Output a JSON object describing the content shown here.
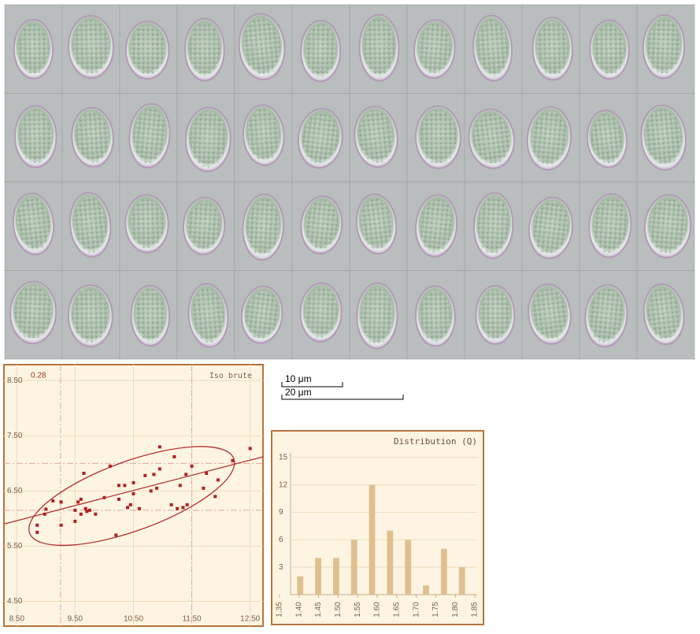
{
  "chart_data": [
    {
      "type": "scatter",
      "annotations": [
        "0.28",
        "Iso brute"
      ],
      "x": [
        8.85,
        8.85,
        8.98,
        9.0,
        9.12,
        9.26,
        9.26,
        9.5,
        9.5,
        9.55,
        9.6,
        9.6,
        9.65,
        9.68,
        9.7,
        9.75,
        9.85,
        10.0,
        10.1,
        10.2,
        10.25,
        10.25,
        10.35,
        10.4,
        10.45,
        10.5,
        10.5,
        10.6,
        10.7,
        10.8,
        10.85,
        10.9,
        10.95,
        10.95,
        11.15,
        11.2,
        11.25,
        11.3,
        11.35,
        11.4,
        11.42,
        11.5,
        11.7,
        11.75,
        11.9,
        11.95,
        12.2,
        12.5
      ],
      "values": [
        5.75,
        5.88,
        6.08,
        6.17,
        6.32,
        5.88,
        6.3,
        5.95,
        6.15,
        6.3,
        6.35,
        6.08,
        6.82,
        6.18,
        6.13,
        6.15,
        6.08,
        6.38,
        6.95,
        5.7,
        6.35,
        6.6,
        6.6,
        6.2,
        6.25,
        6.45,
        6.65,
        6.18,
        6.78,
        6.5,
        6.8,
        6.55,
        7.3,
        6.9,
        6.25,
        7.12,
        6.18,
        6.6,
        6.2,
        6.8,
        6.25,
        6.95,
        6.55,
        6.82,
        6.4,
        6.7,
        7.05,
        7.27
      ],
      "color": "#b02020",
      "xlim": [
        8.28,
        12.72
      ],
      "ylim": [
        4.05,
        8.79
      ],
      "xticks": [
        {
          "value": 8.5,
          "label": "8.50"
        },
        {
          "value": 9.5,
          "label": "9.50"
        },
        {
          "value": 10.5,
          "label": "10.50"
        },
        {
          "value": 11.5,
          "label": "11.50"
        },
        {
          "value": 12.5,
          "label": "12.50"
        }
      ],
      "yticks": [
        {
          "value": 4.5,
          "label": "4.50"
        },
        {
          "value": 5.5,
          "label": "5.50"
        },
        {
          "value": 6.5,
          "label": "6.50"
        },
        {
          "value": 7.5,
          "label": "7.50"
        },
        {
          "value": 8.5,
          "label": "8.50"
        }
      ],
      "x_ref": [
        9.25,
        11.5
      ],
      "y_ref": [
        6.15,
        7.0
      ],
      "trend": {
        "x": [
          8.28,
          12.72
        ],
        "y": [
          5.9,
          7.12
        ]
      },
      "ellipse": {
        "cx": 10.47,
        "cy": 6.41
      },
      "grid": true
    },
    {
      "type": "histogram",
      "title": "Distribution (Q)",
      "bins": [
        1.38,
        1.426,
        1.472,
        1.518,
        1.564,
        1.61,
        1.656,
        1.702,
        1.748,
        1.794,
        1.84
      ],
      "values": [
        2,
        4,
        4,
        6,
        12,
        7,
        6,
        1,
        5,
        3
      ],
      "color": "#dfbf8e",
      "xlim": [
        1.33,
        1.872
      ],
      "ylim": [
        0,
        15.5
      ],
      "xticks": [
        1.35,
        {
          "value": 1.4,
          "label": "1.40"
        },
        1.45,
        {
          "value": 1.5,
          "label": "1.50"
        },
        1.55,
        {
          "value": 1.6,
          "label": "1.60"
        },
        1.65,
        {
          "value": 1.7,
          "label": "1.70"
        },
        1.75,
        {
          "value": 1.8,
          "label": "1.80"
        },
        1.85
      ],
      "yticks": [
        3,
        6,
        9,
        12,
        15
      ],
      "grid": true
    }
  ],
  "scale_bars": [
    {
      "label": "10 μm"
    },
    {
      "label": "20 μm"
    }
  ]
}
